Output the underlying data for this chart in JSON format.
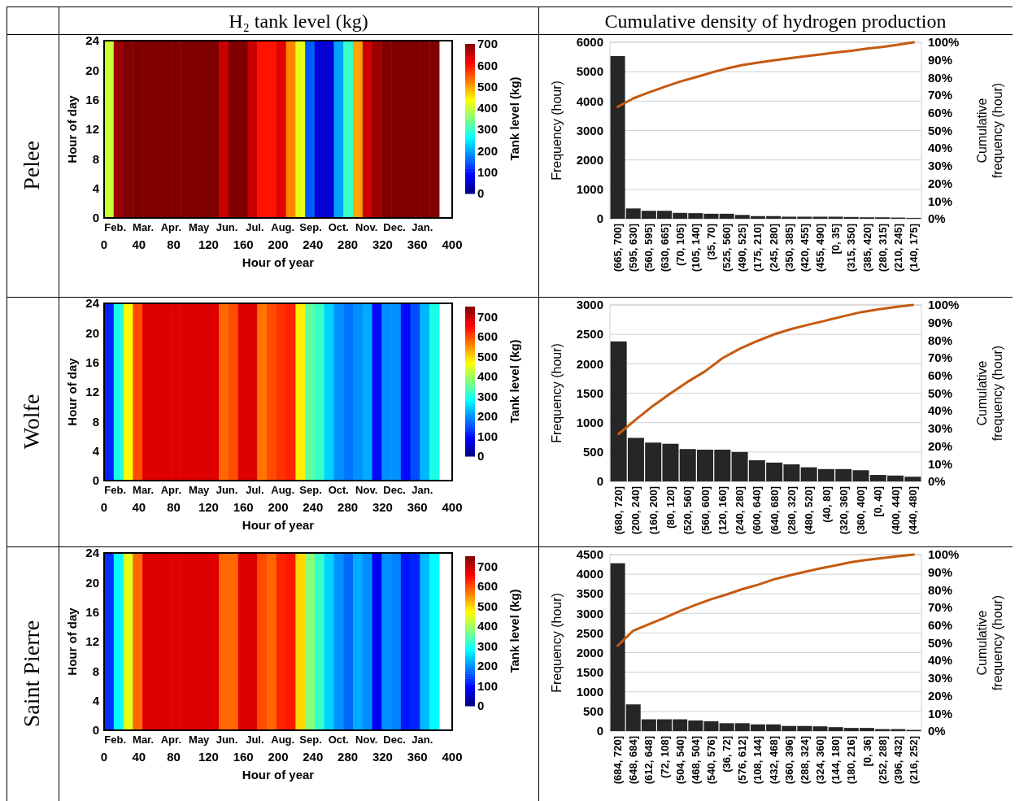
{
  "chart_data": [
    {
      "type": "heatmap",
      "title": "H₂ tank level (kg)",
      "subtitle": "Pelee",
      "xlabel": "Hour of year",
      "ylabel": "Hour of day",
      "clabel": "Tank level (kg)",
      "xlim": [
        0,
        400
      ],
      "xticks": [
        0,
        40,
        80,
        120,
        160,
        200,
        240,
        280,
        320,
        360,
        400
      ],
      "ylim": [
        0,
        24
      ],
      "yticks": [
        0,
        4,
        8,
        12,
        16,
        20,
        24
      ],
      "annotations": [
        "Feb.",
        "Mar.",
        "Apr.",
        "May",
        "Jun.",
        "Jul.",
        "Aug.",
        "Sep.",
        "Oct.",
        "Nov.",
        "Dec.",
        "Jan."
      ],
      "clim": [
        0,
        700
      ],
      "cticks": [
        0,
        100,
        200,
        300,
        400,
        500,
        600,
        700
      ],
      "x": [
        5.5,
        16.5,
        27.5,
        38.5,
        49.5,
        60.5,
        71.5,
        82.5,
        93.5,
        104.5,
        115.5,
        126.5,
        137.5,
        148.5,
        159.5,
        170.5,
        181.5,
        192.5,
        203.5,
        214.5,
        225.5,
        236.5,
        247.5,
        258.5,
        269.5,
        280.5,
        291.5,
        302.5,
        313.5,
        324.5,
        335.5,
        346.5,
        357.5,
        368.5,
        379.5
      ],
      "cells": [
        [
          400,
          680,
          700,
          700,
          700,
          700,
          700,
          700,
          700,
          700,
          700,
          700,
          650,
          700,
          700,
          650,
          600,
          600,
          630,
          520,
          420,
          150,
          60,
          60,
          200,
          300,
          500,
          650,
          680,
          700,
          700,
          700,
          700,
          700,
          700
        ]
      ]
    },
    {
      "type": "bar",
      "title": "Cumulative density of hydrogen production",
      "ylabel": "Frequency (hour)",
      "y2label": "Cumulative frequency (hour)",
      "grid": "y",
      "categories": [
        "(665, 700]",
        "(595, 630]",
        "(560, 595]",
        "(630, 665]",
        "(70, 105]",
        "(105, 140]",
        "(35, 70]",
        "(525, 560]",
        "(490, 525]",
        "(175, 210]",
        "(245, 280]",
        "(350, 385]",
        "(420, 455]",
        "(455, 490]",
        "[0, 35]",
        "(315, 350]",
        "(385, 420]",
        "(280, 315]",
        "(210, 245]",
        "(140, 175]"
      ],
      "ylim": [
        0,
        6000
      ],
      "yticks": [
        0,
        1000,
        2000,
        3000,
        4000,
        5000,
        6000
      ],
      "y2lim": [
        0,
        100
      ],
      "y2ticks": [
        {
          "value": 0,
          "label": "0%"
        },
        {
          "value": 10,
          "label": "10%"
        },
        {
          "value": 20,
          "label": "20%"
        },
        {
          "value": 30,
          "label": "30%"
        },
        {
          "value": 40,
          "label": "40%"
        },
        {
          "value": 50,
          "label": "50%"
        },
        {
          "value": 60,
          "label": "60%"
        },
        {
          "value": 70,
          "label": "70%"
        },
        {
          "value": 80,
          "label": "80%"
        },
        {
          "value": 90,
          "label": "90%"
        },
        {
          "value": 100,
          "label": "100%"
        }
      ],
      "series": [
        {
          "type": "bar",
          "color": "#262626",
          "values": [
            5530,
            350,
            270,
            270,
            200,
            190,
            170,
            170,
            130,
            90,
            90,
            70,
            70,
            70,
            70,
            60,
            50,
            50,
            40,
            30
          ]
        },
        {
          "type": "line",
          "axis": "y2",
          "color": "#c55a11",
          "values": [
            63.4,
            68.2,
            71.6,
            74.7,
            77.7,
            80.2,
            82.8,
            85.1,
            87.1,
            88.5,
            89.7,
            90.9,
            92.1,
            93.1,
            94.2,
            95.2,
            96.4,
            97.4,
            98.6,
            100
          ]
        }
      ]
    },
    {
      "type": "heatmap",
      "subtitle": "Wolfe",
      "xlabel": "Hour of year",
      "ylabel": "Hour of day",
      "clabel": "Tank level (kg)",
      "xlim": [
        0,
        400
      ],
      "xticks": [
        0,
        40,
        80,
        120,
        160,
        200,
        240,
        280,
        320,
        360,
        400
      ],
      "ylim": [
        0,
        24
      ],
      "yticks": [
        0,
        4,
        8,
        12,
        16,
        20,
        24
      ],
      "annotations": [
        "Feb.",
        "Mar.",
        "Apr.",
        "May",
        "Jun.",
        "Jul.",
        "Aug.",
        "Sep.",
        "Oct.",
        "Nov.",
        "Dec.",
        "Jan."
      ],
      "clim": [
        0,
        750
      ],
      "cticks": [
        0,
        100,
        200,
        300,
        400,
        500,
        600,
        700
      ],
      "x": [
        5.5,
        16.5,
        27.5,
        38.5,
        49.5,
        60.5,
        71.5,
        82.5,
        93.5,
        104.5,
        115.5,
        126.5,
        137.5,
        148.5,
        159.5,
        170.5,
        181.5,
        192.5,
        203.5,
        214.5,
        225.5,
        236.5,
        247.5,
        258.5,
        269.5,
        280.5,
        291.5,
        302.5,
        313.5,
        324.5,
        335.5,
        346.5,
        357.5,
        368.5,
        379.5
      ],
      "cells": [
        [
          120,
          300,
          470,
          600,
          680,
          680,
          680,
          680,
          680,
          680,
          680,
          680,
          580,
          600,
          680,
          680,
          570,
          600,
          620,
          630,
          480,
          350,
          320,
          250,
          200,
          180,
          200,
          220,
          100,
          200,
          200,
          100,
          150,
          230,
          300
        ]
      ]
    },
    {
      "type": "bar",
      "ylabel": "Frequency (hour)",
      "y2label": "Cumulative frequency (hour)",
      "grid": "y",
      "categories": [
        "(680, 720]",
        "(200, 240]",
        "(160, 200]",
        "(80, 120]",
        "(520, 560]",
        "(560, 600]",
        "(120, 160]",
        "(240, 280]",
        "(600, 640]",
        "(640, 680]",
        "(280, 320]",
        "(480, 520]",
        "(40, 80]",
        "(320, 360]",
        "(360, 400]",
        "[0, 40]",
        "(400, 440]",
        "(440, 480]"
      ],
      "ylim": [
        0,
        3000
      ],
      "yticks": [
        0,
        500,
        1000,
        1500,
        2000,
        2500,
        3000
      ],
      "y2lim": [
        0,
        100
      ],
      "y2ticks": [
        {
          "value": 0,
          "label": "0%"
        },
        {
          "value": 10,
          "label": "10%"
        },
        {
          "value": 20,
          "label": "20%"
        },
        {
          "value": 30,
          "label": "30%"
        },
        {
          "value": 40,
          "label": "40%"
        },
        {
          "value": 50,
          "label": "50%"
        },
        {
          "value": 60,
          "label": "60%"
        },
        {
          "value": 70,
          "label": "70%"
        },
        {
          "value": 80,
          "label": "80%"
        },
        {
          "value": 90,
          "label": "90%"
        },
        {
          "value": 100,
          "label": "100%"
        }
      ],
      "series": [
        {
          "type": "bar",
          "color": "#262626",
          "values": [
            2380,
            740,
            660,
            640,
            550,
            540,
            540,
            500,
            360,
            320,
            290,
            240,
            210,
            210,
            190,
            110,
            100,
            80
          ]
        },
        {
          "type": "line",
          "axis": "y2",
          "color": "#c55a11",
          "values": [
            26.9,
            35.1,
            42.9,
            49.9,
            56.5,
            62.4,
            69.8,
            75.2,
            79.5,
            83.4,
            86.4,
            88.9,
            91.2,
            93.6,
            95.9,
            97.5,
            98.8,
            100
          ]
        }
      ]
    },
    {
      "type": "heatmap",
      "subtitle": "Saint Pierre",
      "xlabel": "Hour of year",
      "ylabel": "Hour of day",
      "clabel": "Tank level (kg)",
      "xlim": [
        0,
        400
      ],
      "xticks": [
        0,
        40,
        80,
        120,
        160,
        200,
        240,
        280,
        320,
        360,
        400
      ],
      "ylim": [
        0,
        24
      ],
      "yticks": [
        0,
        4,
        8,
        12,
        16,
        20,
        24
      ],
      "annotations": [
        "Feb.",
        "Mar.",
        "Apr.",
        "May",
        "Jun.",
        "Jul.",
        "Aug.",
        "Sep.",
        "Oct.",
        "Nov.",
        "Dec.",
        "Jan."
      ],
      "clim": [
        0,
        750
      ],
      "cticks": [
        0,
        100,
        200,
        300,
        400,
        500,
        600,
        700
      ],
      "x": [
        5.5,
        16.5,
        27.5,
        38.5,
        49.5,
        60.5,
        71.5,
        82.5,
        93.5,
        104.5,
        115.5,
        126.5,
        137.5,
        148.5,
        159.5,
        170.5,
        181.5,
        192.5,
        203.5,
        214.5,
        225.5,
        236.5,
        247.5,
        258.5,
        269.5,
        280.5,
        291.5,
        302.5,
        313.5,
        324.5,
        335.5,
        346.5,
        357.5,
        368.5,
        379.5
      ],
      "cells": [
        [
          130,
          280,
          450,
          580,
          680,
          680,
          680,
          680,
          680,
          680,
          680,
          680,
          580,
          580,
          680,
          680,
          600,
          580,
          630,
          640,
          500,
          380,
          320,
          250,
          200,
          170,
          220,
          200,
          90,
          200,
          190,
          110,
          120,
          230,
          280
        ]
      ]
    },
    {
      "type": "bar",
      "ylabel": "Frequency (hour)",
      "y2label": "Cumulative frequency (hour)",
      "grid": "y",
      "categories": [
        "(684, 720]",
        "(648, 684]",
        "(612, 648]",
        "(72, 108]",
        "(504, 540]",
        "(468, 504]",
        "(540, 576]",
        "(36, 72]",
        "(576, 612]",
        "(108, 144]",
        "(432, 468]",
        "(360, 396]",
        "(288, 324]",
        "(324, 360]",
        "(144, 180]",
        "(180, 216]",
        "[0, 36]",
        "(252, 288]",
        "(396, 432]",
        "(216, 252]"
      ],
      "ylim": [
        0,
        4500
      ],
      "yticks": [
        0,
        500,
        1000,
        1500,
        2000,
        2500,
        3000,
        3500,
        4000,
        4500
      ],
      "y2lim": [
        0,
        100
      ],
      "y2ticks": [
        {
          "value": 0,
          "label": "0%"
        },
        {
          "value": 10,
          "label": "10%"
        },
        {
          "value": 20,
          "label": "20%"
        },
        {
          "value": 30,
          "label": "30%"
        },
        {
          "value": 40,
          "label": "40%"
        },
        {
          "value": 50,
          "label": "50%"
        },
        {
          "value": 60,
          "label": "60%"
        },
        {
          "value": 70,
          "label": "70%"
        },
        {
          "value": 80,
          "label": "80%"
        },
        {
          "value": 90,
          "label": "90%"
        },
        {
          "value": 100,
          "label": "100%"
        }
      ],
      "series": [
        {
          "type": "bar",
          "color": "#262626",
          "values": [
            4280,
            680,
            300,
            300,
            300,
            270,
            250,
            200,
            200,
            170,
            170,
            130,
            130,
            120,
            100,
            80,
            80,
            50,
            50,
            30
          ]
        },
        {
          "type": "line",
          "axis": "y2",
          "color": "#c55a11",
          "values": [
            48.4,
            56.9,
            60.5,
            64.1,
            68.0,
            71.5,
            74.7,
            77.4,
            80.4,
            82.9,
            85.9,
            88.1,
            90.2,
            92.2,
            93.9,
            95.7,
            97.0,
            98.0,
            99.1,
            100
          ]
        }
      ]
    }
  ]
}
